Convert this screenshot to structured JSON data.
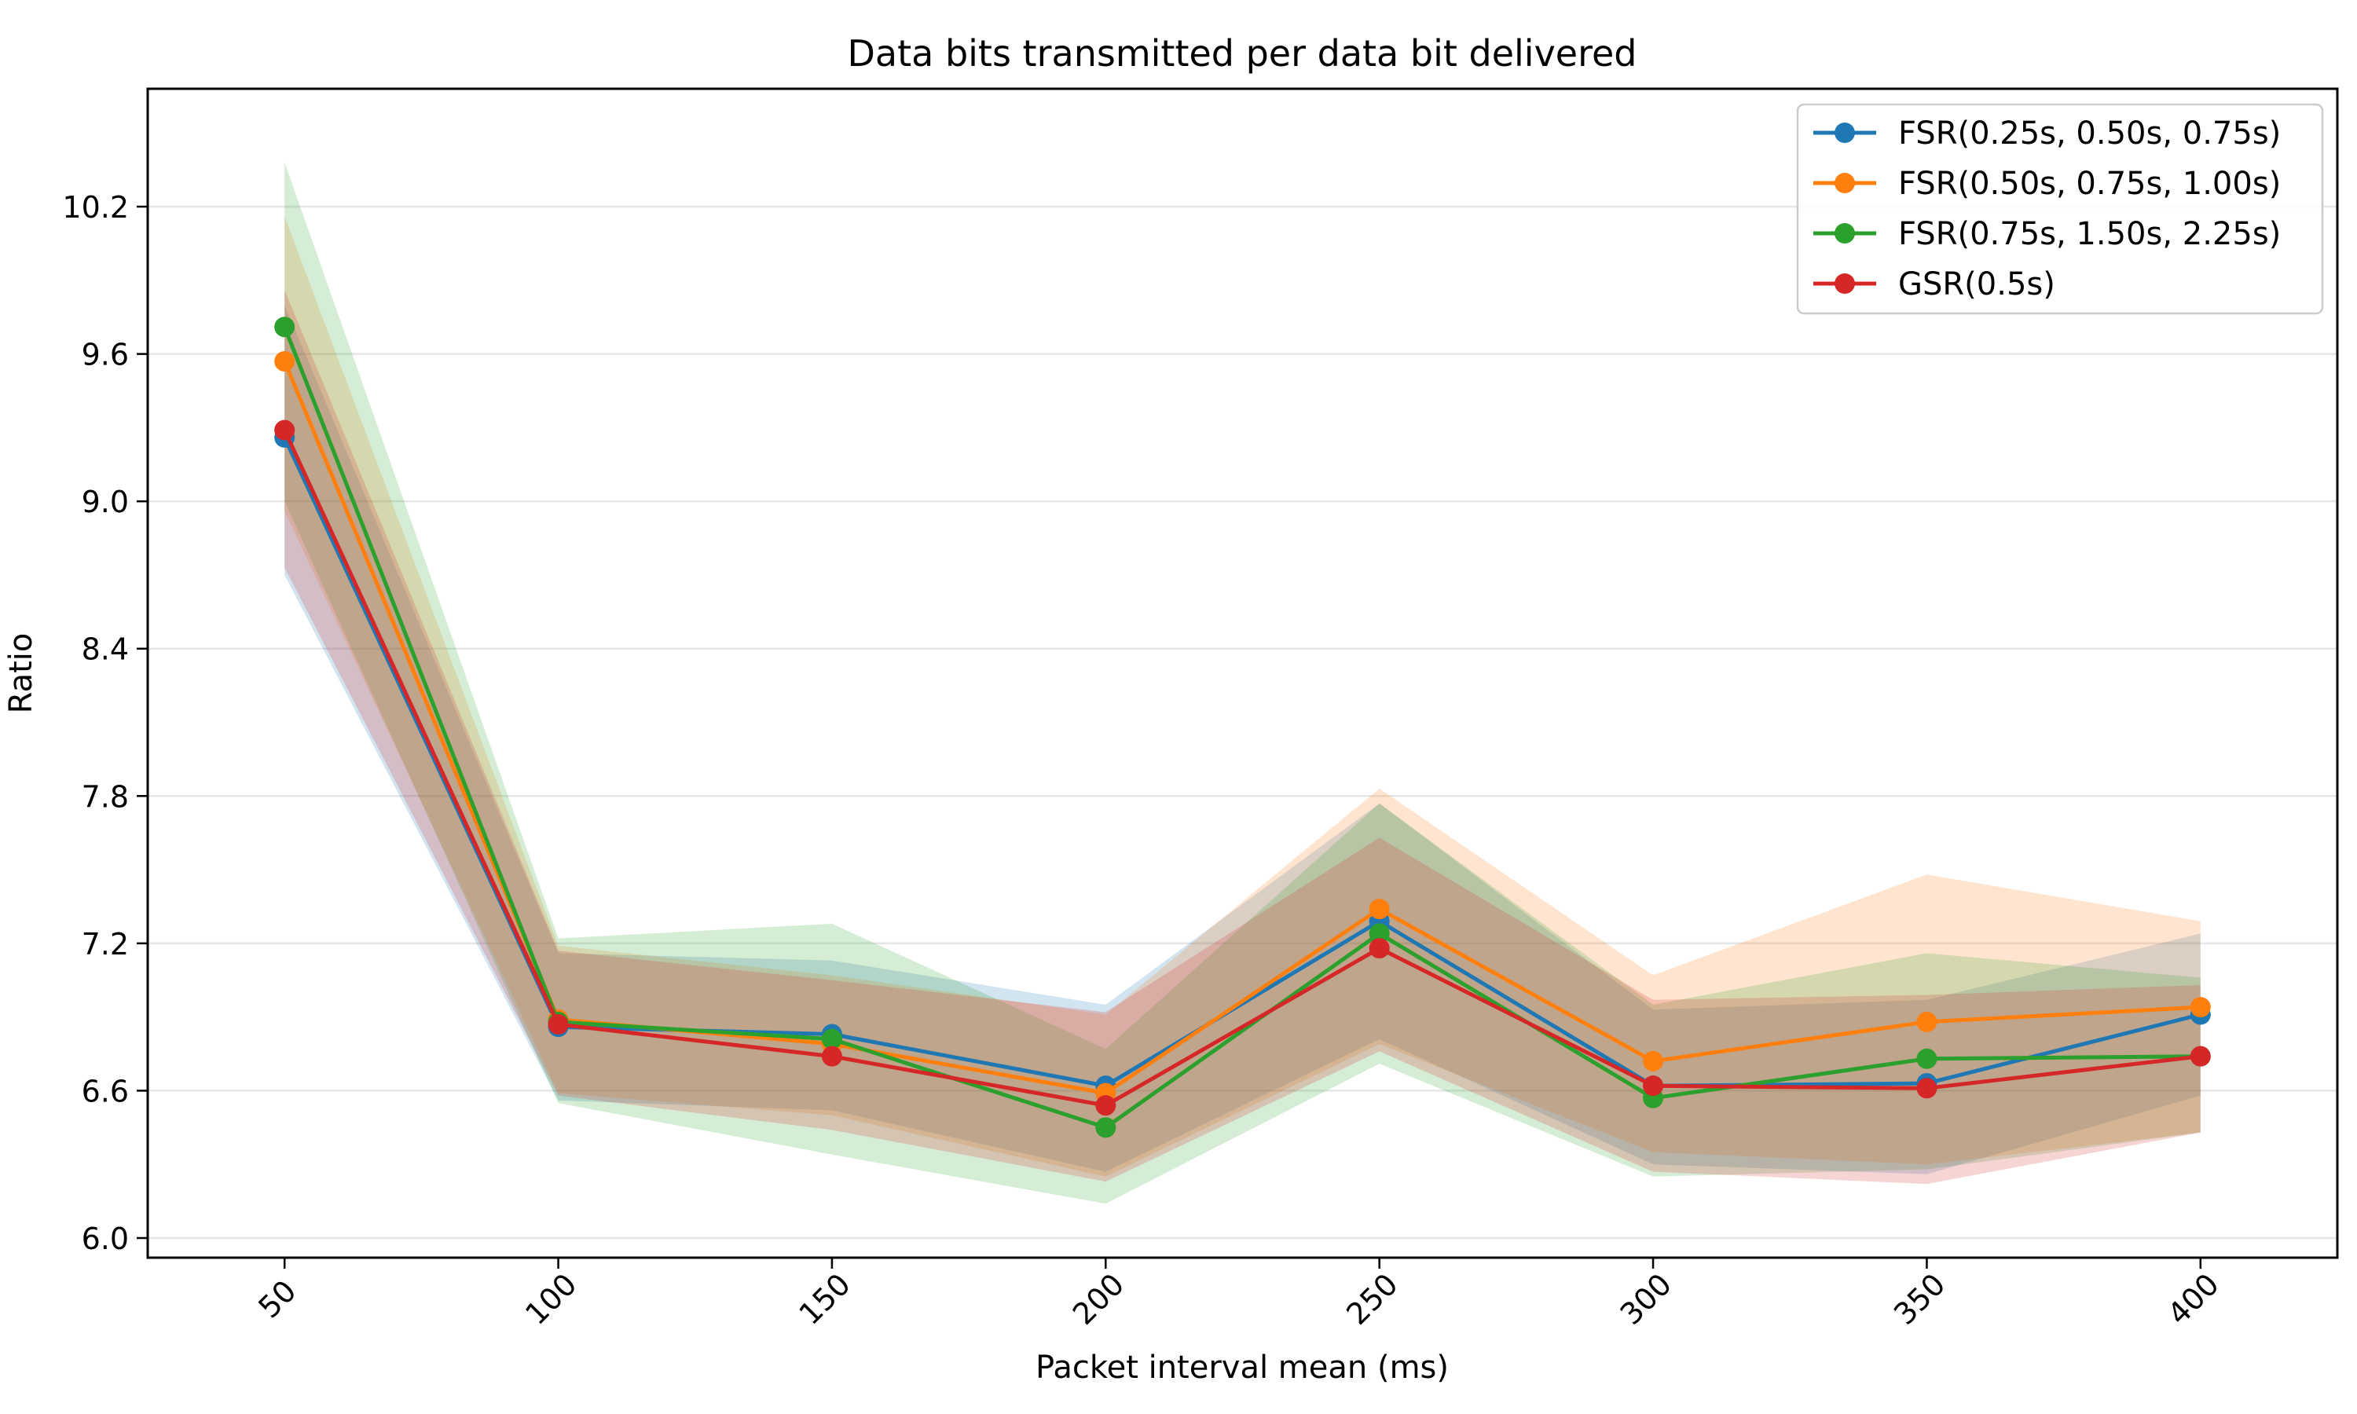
{
  "chart_data": {
    "type": "line",
    "title": "Data bits transmitted per data bit delivered",
    "xlabel": "Packet interval mean (ms)",
    "ylabel": "Ratio",
    "x": [
      50,
      100,
      150,
      200,
      250,
      300,
      350,
      400
    ],
    "x_ticks": [
      50,
      100,
      150,
      200,
      250,
      300,
      350,
      400
    ],
    "x_tick_labels": [
      "50",
      "100",
      "150",
      "200",
      "250",
      "300",
      "350",
      "400"
    ],
    "y_ticks": [
      6.0,
      6.6,
      7.2,
      7.8,
      8.4,
      9.0,
      9.6,
      10.2
    ],
    "y_tick_labels": [
      "6.0",
      "6.6",
      "7.2",
      "7.8",
      "8.4",
      "9.0",
      "9.6",
      "10.2"
    ],
    "xlim": [
      25,
      425
    ],
    "ylim": [
      5.92,
      10.68
    ],
    "grid": "horizontal",
    "legend_position": "top-right",
    "series": [
      {
        "name": "FSR(0.25s, 0.50s, 0.75s)",
        "color": "#1f77b4",
        "values": [
          9.26,
          6.86,
          6.83,
          6.62,
          7.29,
          6.62,
          6.63,
          6.91
        ],
        "upper": [
          9.8,
          7.16,
          7.13,
          6.95,
          7.77,
          6.93,
          6.97,
          7.24
        ],
        "lower": [
          8.7,
          6.56,
          6.52,
          6.27,
          6.81,
          6.3,
          6.26,
          6.58
        ]
      },
      {
        "name": "FSR(0.50s, 0.75s, 1.00s)",
        "color": "#ff7f0e",
        "values": [
          9.57,
          6.89,
          6.79,
          6.59,
          7.34,
          6.72,
          6.88,
          6.94
        ],
        "upper": [
          10.16,
          7.19,
          7.07,
          6.91,
          7.83,
          7.07,
          7.48,
          7.29
        ],
        "lower": [
          8.96,
          6.59,
          6.5,
          6.25,
          6.79,
          6.35,
          6.3,
          6.43
        ]
      },
      {
        "name": "FSR(0.75s, 1.50s, 2.25s)",
        "color": "#2ca02c",
        "values": [
          9.71,
          6.88,
          6.81,
          6.45,
          7.24,
          6.57,
          6.73,
          6.74
        ],
        "upper": [
          10.38,
          7.22,
          7.28,
          6.77,
          7.77,
          6.95,
          7.16,
          7.06
        ],
        "lower": [
          9.0,
          6.55,
          6.34,
          6.14,
          6.71,
          6.25,
          6.28,
          6.43
        ]
      },
      {
        "name": "GSR(0.5s)",
        "color": "#d62728",
        "values": [
          9.29,
          6.87,
          6.74,
          6.54,
          7.18,
          6.62,
          6.61,
          6.74
        ],
        "upper": [
          9.86,
          7.17,
          7.05,
          6.92,
          7.63,
          6.97,
          6.99,
          7.03
        ],
        "lower": [
          8.73,
          6.58,
          6.44,
          6.23,
          6.76,
          6.27,
          6.22,
          6.43
        ]
      }
    ]
  }
}
